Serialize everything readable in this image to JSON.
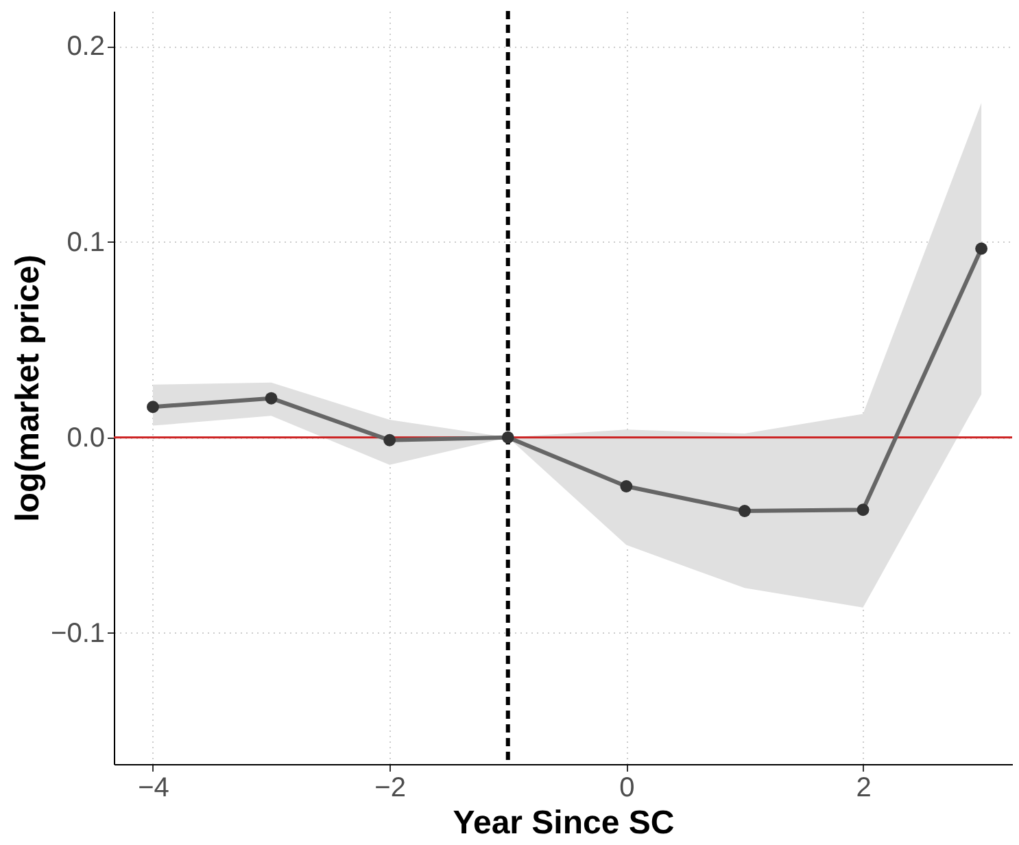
{
  "chart_data": {
    "type": "line",
    "xlabel": "Year Since SC",
    "ylabel": "log(market price)",
    "x": [
      -4,
      -3,
      -2,
      -1,
      0,
      1,
      2,
      3
    ],
    "series": [
      {
        "color": "#666666",
        "values": [
          0.0156,
          0.02,
          -0.0014,
          0,
          -0.025,
          -0.0376,
          -0.037,
          0.0965
        ],
        "lower": [
          0.006,
          0.011,
          -0.014,
          0,
          -0.055,
          -0.077,
          -0.087,
          0.022
        ],
        "upper": [
          0.027,
          0.028,
          0.009,
          0,
          0.004,
          0.002,
          0.012,
          0.171
        ]
      }
    ],
    "xlim": [
      -4.33,
      3.26
    ],
    "ylim": [
      -0.167,
      0.218
    ],
    "xticks": [
      {
        "value": -4,
        "label": "−4"
      },
      {
        "value": -2,
        "label": "−2"
      },
      {
        "value": 0,
        "label": "0"
      },
      {
        "value": 2,
        "label": "2"
      }
    ],
    "yticks": [
      {
        "value": -0.1,
        "label": "−0.1"
      },
      {
        "value": 0,
        "label": "0.0"
      },
      0.1,
      0.2
    ],
    "ref_lines": [
      {
        "axis": "x",
        "value": -1,
        "color": "#000000",
        "line_style": "dashed"
      },
      {
        "axis": "y",
        "value": 0,
        "color": "#cc2222",
        "line_style": "solid"
      }
    ],
    "grid": true,
    "marker": "circle",
    "line_style": "solid"
  }
}
